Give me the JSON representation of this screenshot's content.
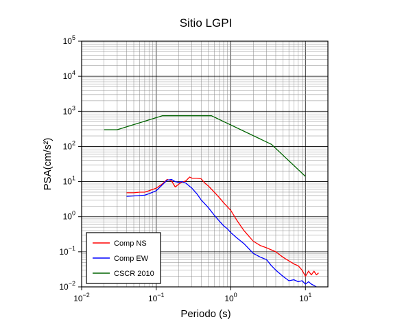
{
  "chart_data": {
    "type": "line",
    "title": "Sitio LGPI",
    "xlabel": "Periodo (s)",
    "ylabel": "PSA(cm/s²)",
    "xscale": "log",
    "yscale": "log",
    "xlim": [
      0.01,
      20
    ],
    "ylim": [
      0.01,
      100000
    ],
    "grid": true,
    "legend_position": "bottom-left",
    "x_ticks": [
      {
        "value": 0.01,
        "base": "10",
        "exp": "−2"
      },
      {
        "value": 0.1,
        "base": "10",
        "exp": "−1"
      },
      {
        "value": 1,
        "base": "10",
        "exp": "0"
      },
      {
        "value": 10,
        "base": "10",
        "exp": "1"
      }
    ],
    "y_ticks": [
      {
        "value": 0.01,
        "base": "10",
        "exp": "−2"
      },
      {
        "value": 0.1,
        "base": "10",
        "exp": "−1"
      },
      {
        "value": 1,
        "base": "10",
        "exp": "0"
      },
      {
        "value": 10,
        "base": "10",
        "exp": "1"
      },
      {
        "value": 100,
        "base": "10",
        "exp": "2"
      },
      {
        "value": 1000,
        "base": "10",
        "exp": "3"
      },
      {
        "value": 10000,
        "base": "10",
        "exp": "4"
      },
      {
        "value": 100000,
        "base": "10",
        "exp": "5"
      }
    ],
    "series": [
      {
        "name": "Comp NS",
        "color": "#ff0000",
        "x": [
          0.04,
          0.05,
          0.06,
          0.07,
          0.08,
          0.1,
          0.12,
          0.14,
          0.16,
          0.18,
          0.2,
          0.22,
          0.25,
          0.28,
          0.3,
          0.35,
          0.4,
          0.45,
          0.5,
          0.6,
          0.7,
          0.8,
          1.0,
          1.2,
          1.5,
          2.0,
          2.5,
          3.0,
          4.0,
          5.0,
          6.0,
          7.0,
          8.0,
          9.0,
          10.0,
          11.0,
          12.0,
          13.0,
          14.0,
          15.0
        ],
        "y": [
          4.8,
          4.8,
          5.0,
          5.0,
          5.5,
          6.5,
          8.5,
          11.5,
          10.5,
          7.0,
          8.5,
          9.5,
          10.5,
          13.5,
          12.5,
          12.5,
          12.0,
          9.0,
          7.5,
          5.0,
          3.5,
          2.5,
          1.5,
          0.8,
          0.4,
          0.2,
          0.15,
          0.13,
          0.1,
          0.07,
          0.055,
          0.045,
          0.04,
          0.03,
          0.02,
          0.028,
          0.022,
          0.028,
          0.022,
          0.025
        ]
      },
      {
        "name": "Comp EW",
        "color": "#0000ff",
        "x": [
          0.04,
          0.05,
          0.06,
          0.07,
          0.08,
          0.1,
          0.12,
          0.14,
          0.16,
          0.18,
          0.2,
          0.22,
          0.25,
          0.3,
          0.35,
          0.4,
          0.45,
          0.5,
          0.6,
          0.7,
          0.8,
          0.9,
          1.0,
          1.2,
          1.5,
          2.0,
          2.5,
          3.0,
          3.5,
          4.0,
          5.0,
          6.0,
          7.0,
          8.0,
          9.0,
          10.0,
          11.0,
          12.0,
          13.0,
          14.0
        ],
        "y": [
          3.8,
          3.9,
          4.0,
          4.1,
          4.5,
          5.5,
          8.0,
          11.0,
          11.5,
          10.0,
          9.5,
          10.0,
          9.0,
          6.5,
          4.5,
          3.0,
          2.3,
          1.8,
          1.1,
          0.75,
          0.55,
          0.45,
          0.35,
          0.25,
          0.17,
          0.09,
          0.07,
          0.06,
          0.04,
          0.03,
          0.02,
          0.015,
          0.016,
          0.014,
          0.015,
          0.012,
          0.014,
          0.012,
          0.011,
          0.01
        ]
      },
      {
        "name": "CSCR 2010",
        "color": "#006400",
        "x": [
          0.02,
          0.03,
          0.12,
          0.55,
          3.5,
          10.0
        ],
        "y": [
          300,
          300,
          750,
          750,
          115,
          14
        ]
      }
    ]
  }
}
